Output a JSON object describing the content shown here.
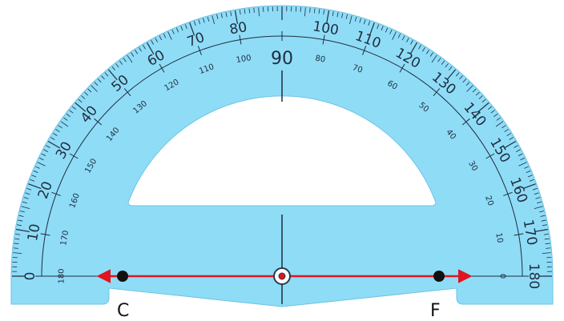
{
  "protractor": {
    "center_label": "90",
    "outer_scale": [
      0,
      10,
      20,
      30,
      40,
      50,
      60,
      70,
      80,
      100,
      110,
      120,
      130,
      140,
      150,
      160,
      170,
      180
    ],
    "inner_scale": [
      180,
      170,
      160,
      150,
      140,
      130,
      120,
      110,
      100,
      80,
      70,
      60,
      50,
      40,
      30,
      20,
      10,
      0
    ],
    "colors": {
      "body": "#8fdcf7",
      "stroke": "#6ec3e4",
      "ink": "#1f2d3d"
    }
  },
  "figure": {
    "points": [
      {
        "label": "C"
      },
      {
        "label": "F"
      }
    ],
    "line_color": "#e0141e",
    "point_color": "#111111"
  }
}
